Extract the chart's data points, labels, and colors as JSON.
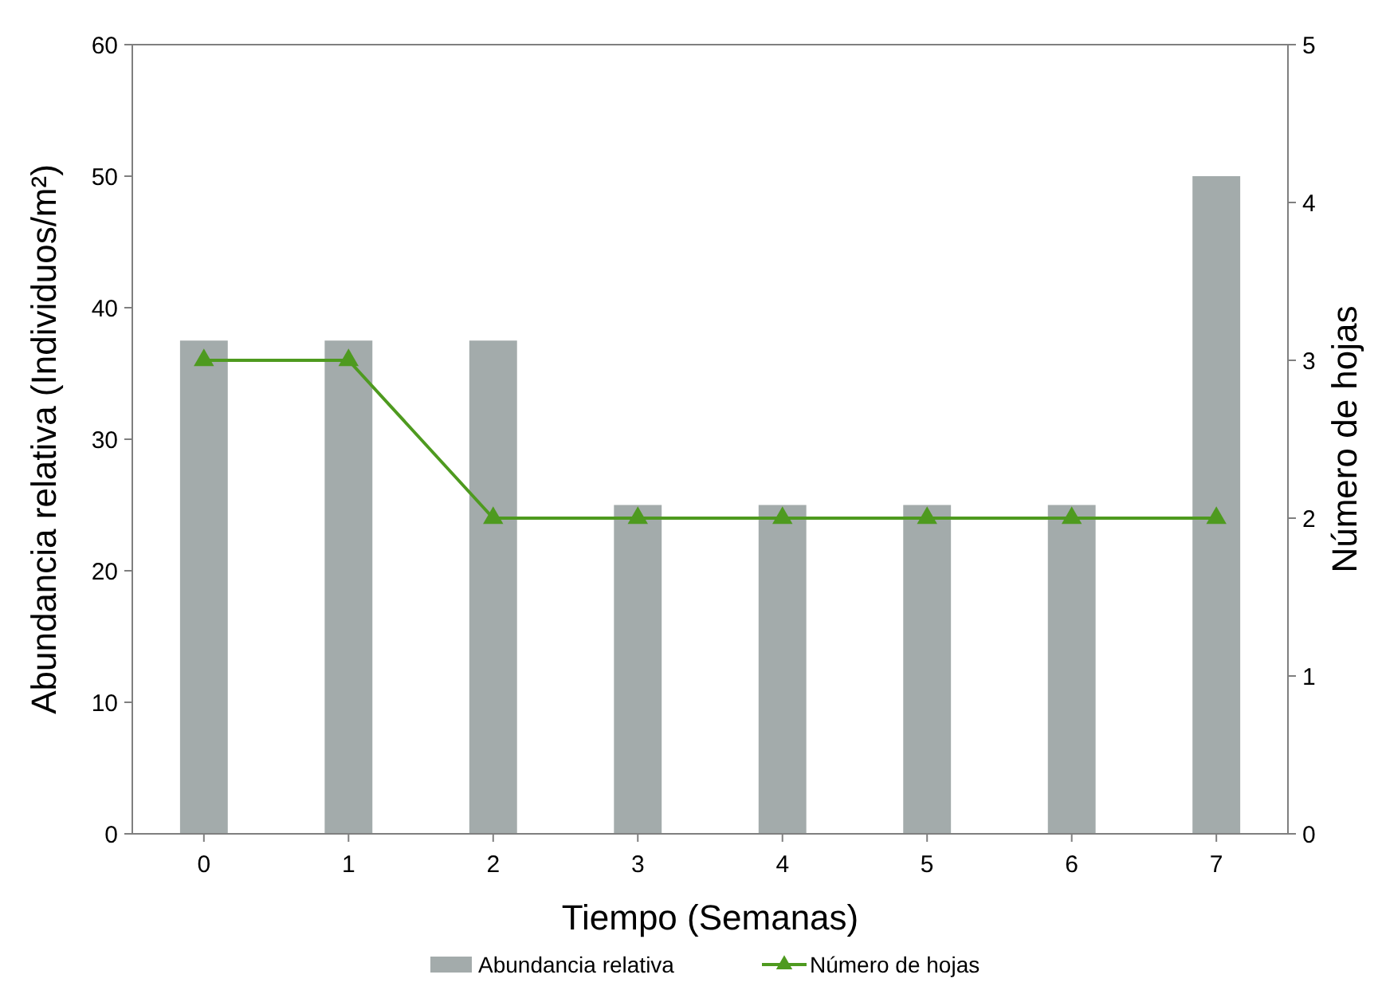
{
  "chart_data": {
    "type": "bar",
    "xlabel": "Tiempo (Semanas)",
    "ylabel": "Abundancia relativa (Individuos/m²)",
    "y2label": "Número de hojas",
    "categories": [
      "0",
      "1",
      "2",
      "3",
      "4",
      "5",
      "6",
      "7"
    ],
    "series": [
      {
        "name": "Abundancia relativa",
        "color": "#a3abab",
        "values": [
          37.5,
          37.5,
          37.5,
          25,
          25,
          25,
          25,
          50
        ]
      },
      {
        "name": "Número de hojas",
        "type": "line",
        "axis": "y2",
        "color": "#4e9a1f",
        "marker": "triangle",
        "values": [
          3,
          3,
          2,
          2,
          2,
          2,
          2,
          2
        ]
      }
    ],
    "ylim": [
      0,
      60
    ],
    "yticks": [
      0,
      10,
      20,
      30,
      40,
      50,
      60
    ],
    "y2lim": [
      0,
      5
    ],
    "y2ticks": [
      0,
      1,
      2,
      3,
      4,
      5
    ],
    "grid": false,
    "legend": "bottom"
  }
}
